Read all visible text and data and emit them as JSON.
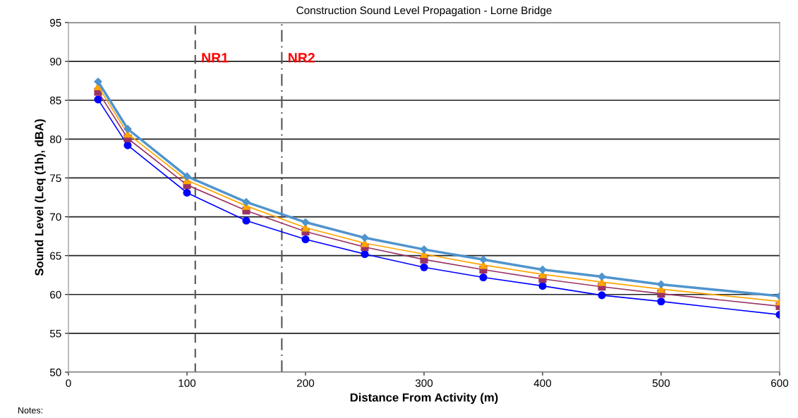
{
  "chart_data": {
    "type": "line",
    "title": "Construction Sound Level Propagation - Lorne Bridge",
    "xlabel": "Distance From Activity (m)",
    "ylabel": "Sound Level (Leq (1h), dBA)",
    "x": [
      25,
      50,
      100,
      150,
      200,
      250,
      300,
      350,
      400,
      450,
      500,
      600
    ],
    "series": [
      {
        "color": "#0000ff",
        "marker": "circle",
        "values": [
          85.1,
          79.2,
          73.1,
          69.5,
          67.1,
          65.2,
          63.5,
          62.2,
          61.1,
          59.9,
          59.1,
          57.4
        ]
      },
      {
        "color": "#993366",
        "marker": "square",
        "values": [
          86.1,
          80.1,
          74.1,
          70.8,
          68.1,
          66.1,
          64.5,
          63.2,
          62.0,
          61.0,
          60.1,
          58.5
        ]
      },
      {
        "color": "#ffa500",
        "marker": "triangle",
        "values": [
          86.8,
          80.7,
          74.7,
          71.4,
          68.6,
          66.6,
          65.2,
          63.8,
          62.6,
          61.6,
          60.7,
          59.1
        ]
      },
      {
        "color": "#4f94cd",
        "marker": "diamond",
        "values": [
          87.4,
          81.3,
          75.2,
          71.9,
          69.3,
          67.3,
          65.8,
          64.5,
          63.2,
          62.3,
          61.3,
          59.8
        ]
      }
    ],
    "xlim": [
      0,
      600
    ],
    "xticks": [
      0,
      100,
      200,
      300,
      400,
      500,
      600
    ],
    "ylim": [
      50,
      95
    ],
    "yticks": [
      50,
      55,
      60,
      65,
      70,
      75,
      80,
      85,
      90,
      95
    ],
    "grid": "y",
    "ref_lines": [
      {
        "axis": "x",
        "value": 107,
        "label": "NR1",
        "color": "#555555",
        "line_style": "dashed"
      },
      {
        "axis": "x",
        "value": 180,
        "label": "NR2",
        "color": "#555555",
        "line_style": "dashdot"
      }
    ],
    "annotations": [
      "Notes:"
    ]
  }
}
